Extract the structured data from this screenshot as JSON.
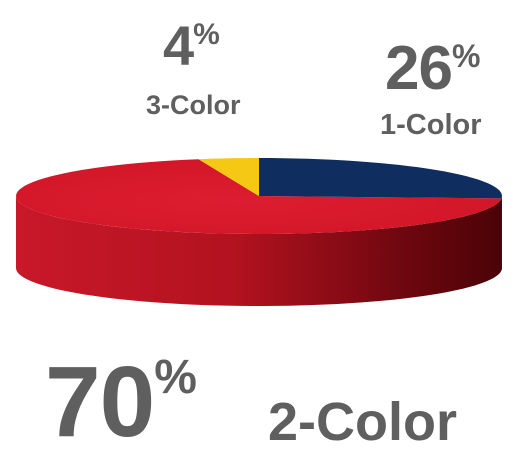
{
  "chart_data": {
    "type": "pie",
    "style": "3d",
    "slices": [
      {
        "label": "1-Color",
        "value": 26,
        "display": "26",
        "color": "#0f2d5e"
      },
      {
        "label": "2-Color",
        "value": 70,
        "display": "70",
        "color": "#d8192b"
      },
      {
        "label": "3-Color",
        "value": 4,
        "display": "4",
        "color": "#f5c814"
      }
    ],
    "percent_sign": "%",
    "colors": {
      "red_side_light": "#c11424",
      "red_side_dark": "#520409",
      "navy_side": "#0a1f44",
      "label_text": "#5f5f5f"
    }
  }
}
